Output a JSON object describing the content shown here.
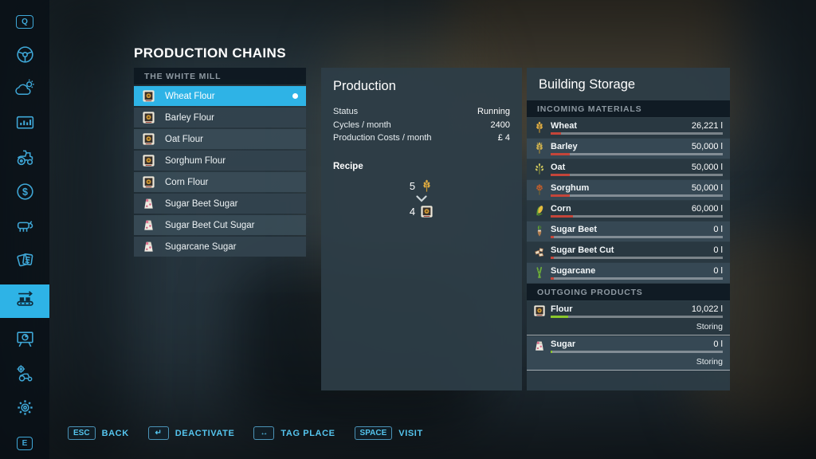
{
  "page_title": "PRODUCTION CHAINS",
  "colors": {
    "accent": "#2eb3e6",
    "incoming_bar": "#c4453a",
    "outgoing_bar": "#8bc72c",
    "hotbar_text": "#55c5ee"
  },
  "sidebar": {
    "items": [
      {
        "id": "key-q",
        "icon": "key",
        "label": "Q",
        "selected": false
      },
      {
        "id": "steering",
        "icon": "steering-wheel",
        "selected": false
      },
      {
        "id": "weather",
        "icon": "weather",
        "selected": false
      },
      {
        "id": "statistics",
        "icon": "statistics",
        "selected": false
      },
      {
        "id": "vehicles",
        "icon": "tractor",
        "selected": false
      },
      {
        "id": "finances",
        "icon": "finances",
        "selected": false
      },
      {
        "id": "animals",
        "icon": "animal",
        "selected": false
      },
      {
        "id": "contracts",
        "icon": "contracts",
        "selected": false
      },
      {
        "id": "production-chains",
        "icon": "production-chain",
        "selected": true
      },
      {
        "id": "map",
        "icon": "map-board",
        "selected": false
      },
      {
        "id": "garage",
        "icon": "garage",
        "selected": false
      },
      {
        "id": "settings",
        "icon": "settings-gear",
        "selected": false
      },
      {
        "id": "key-e",
        "icon": "key",
        "label": "E",
        "selected": false
      }
    ]
  },
  "facility": {
    "name": "THE WHITE MILL",
    "products": [
      {
        "label": "Wheat Flour",
        "icon": "flour-bag",
        "selected": true,
        "active": true
      },
      {
        "label": "Barley Flour",
        "icon": "flour-bag",
        "selected": false,
        "active": false
      },
      {
        "label": "Oat Flour",
        "icon": "flour-bag",
        "selected": false,
        "active": false
      },
      {
        "label": "Sorghum Flour",
        "icon": "flour-bag",
        "selected": false,
        "active": false
      },
      {
        "label": "Corn Flour",
        "icon": "flour-bag",
        "selected": false,
        "active": false
      },
      {
        "label": "Sugar Beet Sugar",
        "icon": "sugar-bag",
        "selected": false,
        "active": false
      },
      {
        "label": "Sugar Beet Cut Sugar",
        "icon": "sugar-bag",
        "selected": false,
        "active": false
      },
      {
        "label": "Sugarcane Sugar",
        "icon": "sugar-bag",
        "selected": false,
        "active": false
      }
    ]
  },
  "production": {
    "title": "Production",
    "rows": [
      {
        "label": "Status",
        "value": "Running"
      },
      {
        "label": "Cycles / month",
        "value": "2400"
      },
      {
        "label": "Production Costs / month",
        "value": "£ 4"
      }
    ],
    "recipe": {
      "label": "Recipe",
      "input": {
        "qty": "5",
        "icon": "wheat"
      },
      "output": {
        "qty": "4",
        "icon": "flour-bag"
      }
    }
  },
  "storage": {
    "title": "Building Storage",
    "incoming_header": "INCOMING MATERIALS",
    "incoming": [
      {
        "name": "Wheat",
        "amount": "26,221 l",
        "fill_pct": 6,
        "icon": "wheat"
      },
      {
        "name": "Barley",
        "amount": "50,000 l",
        "fill_pct": 11,
        "icon": "barley"
      },
      {
        "name": "Oat",
        "amount": "50,000 l",
        "fill_pct": 11,
        "icon": "oat"
      },
      {
        "name": "Sorghum",
        "amount": "50,000 l",
        "fill_pct": 11,
        "icon": "sorghum"
      },
      {
        "name": "Corn",
        "amount": "60,000 l",
        "fill_pct": 13,
        "icon": "corn"
      },
      {
        "name": "Sugar Beet",
        "amount": "0 l",
        "fill_pct": 2,
        "icon": "sugar-beet"
      },
      {
        "name": "Sugar Beet Cut",
        "amount": "0 l",
        "fill_pct": 2,
        "icon": "sugar-beet-cut"
      },
      {
        "name": "Sugarcane",
        "amount": "0 l",
        "fill_pct": 2,
        "icon": "sugarcane"
      }
    ],
    "outgoing_header": "OUTGOING PRODUCTS",
    "outgoing": [
      {
        "name": "Flour",
        "amount": "10,022 l",
        "fill_pct": 10,
        "status": "Storing",
        "icon": "flour-bag"
      },
      {
        "name": "Sugar",
        "amount": "0 l",
        "fill_pct": 1,
        "status": "Storing",
        "icon": "sugar-bag"
      }
    ]
  },
  "hotbar": [
    {
      "key": "ESC",
      "label": "BACK"
    },
    {
      "key": "↵",
      "label": "DEACTIVATE"
    },
    {
      "key": "↔",
      "label": "TAG PLACE"
    },
    {
      "key": "SPACE",
      "label": "VISIT"
    }
  ]
}
